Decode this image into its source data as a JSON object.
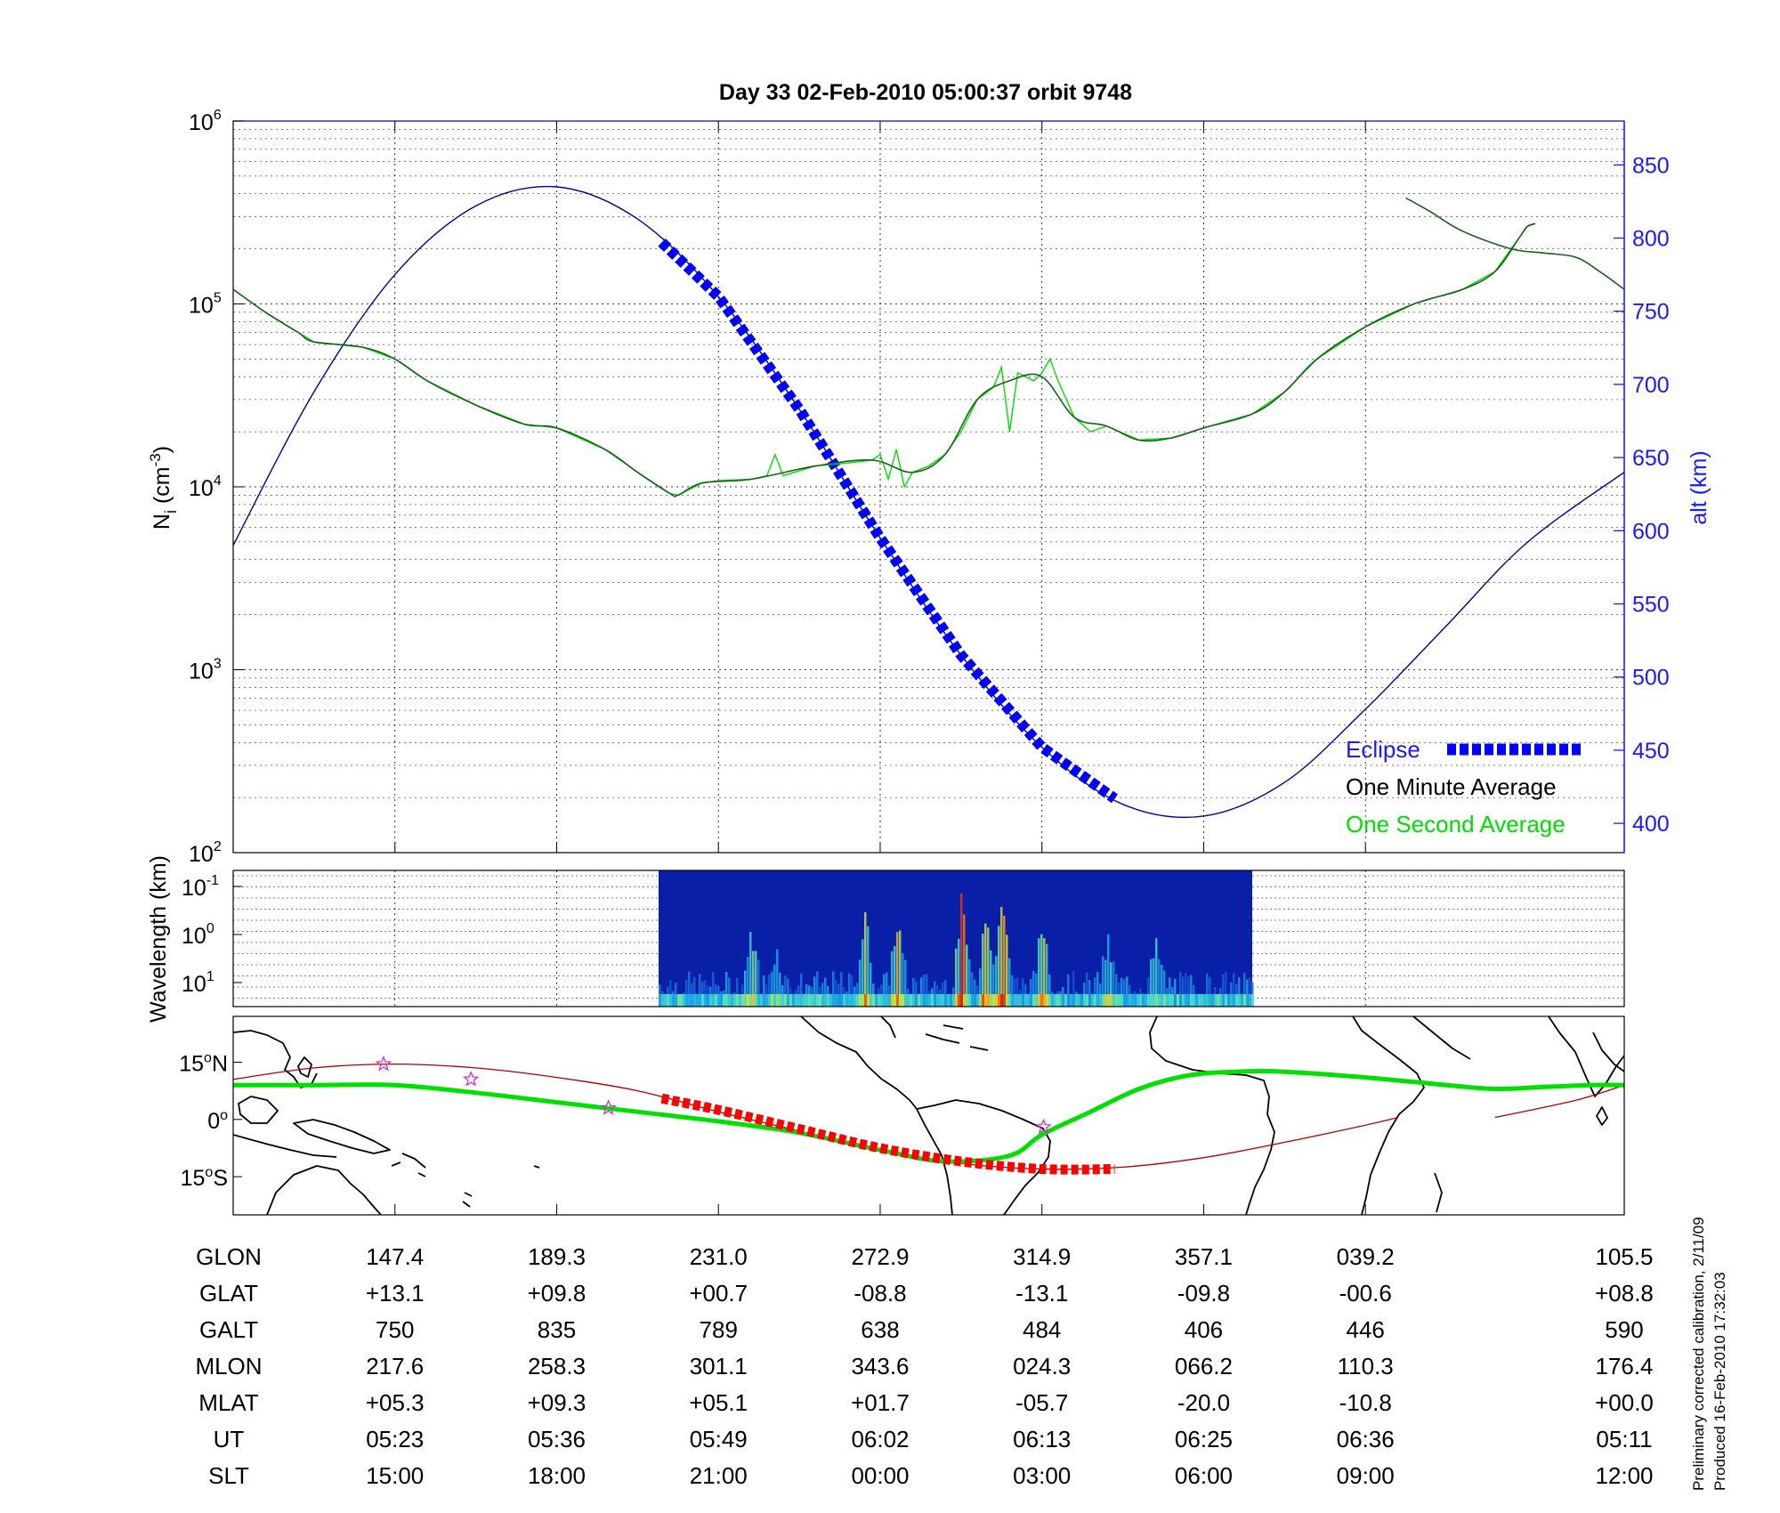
{
  "title": "Day 33  02-Feb-2010 05:00:37   orbit 9748",
  "footer": {
    "line1": "Preliminary corrected calibration, 2/11/09",
    "line2": "Produced 16-Feb-2010 17:32:03"
  },
  "colors": {
    "altitude": "#0000a0",
    "axis_right": "#1a1aff",
    "eclipse": "#0000ff",
    "one_minute": "#1a5e1a",
    "one_second": "#00dd00",
    "track": "#b00000",
    "track_eclipse": "#ff0000",
    "magnetic_equator": "#00e000",
    "star": "#cc33cc",
    "coast": "#000000"
  },
  "chart_data": [
    {
      "type": "line",
      "ylabel_main": "N",
      "ylabel_sub": "i",
      "ylabel_unit_pre": " (cm",
      "ylabel_unit_exp": "-3",
      "ylabel_unit_post": ")",
      "y2label": "alt (km)",
      "y_scale": "log",
      "ylim": [
        100,
        1000000
      ],
      "y_ticks": [
        {
          "base": "10",
          "exp": "2",
          "value": 100
        },
        {
          "base": "10",
          "exp": "3",
          "value": 1000
        },
        {
          "base": "10",
          "exp": "4",
          "value": 10000
        },
        {
          "base": "10",
          "exp": "5",
          "value": 100000
        },
        {
          "base": "10",
          "exp": "6",
          "value": 1000000
        }
      ],
      "y2lim": [
        380,
        880
      ],
      "y2_ticks": [
        "400",
        "450",
        "500",
        "550",
        "600",
        "650",
        "700",
        "750",
        "800",
        "850"
      ],
      "x_range": [
        0,
        8.6
      ],
      "grid": true,
      "legend_position": "bottom-right",
      "legend": [
        {
          "label": "Eclipse",
          "style": "eclipse"
        },
        {
          "label": "One Minute Average",
          "style": "one_minute"
        },
        {
          "label": "One Second Average",
          "style": "one_second"
        }
      ],
      "altitude_km": [
        [
          0.0,
          590
        ],
        [
          0.5,
          695
        ],
        [
          1.0,
          775
        ],
        [
          1.5,
          822
        ],
        [
          2.0,
          835
        ],
        [
          2.5,
          813
        ],
        [
          3.0,
          760
        ],
        [
          3.5,
          683
        ],
        [
          4.0,
          595
        ],
        [
          4.5,
          515
        ],
        [
          5.0,
          452
        ],
        [
          5.5,
          413
        ],
        [
          6.0,
          405
        ],
        [
          6.5,
          428
        ],
        [
          7.0,
          478
        ],
        [
          7.5,
          535
        ],
        [
          8.0,
          592
        ],
        [
          8.6,
          640
        ]
      ],
      "eclipse_interval": [
        2.65,
        5.45
      ],
      "one_second_density": [
        [
          0.0,
          120000
        ],
        [
          0.2,
          90000
        ],
        [
          0.4,
          70000
        ],
        [
          0.5,
          62000
        ],
        [
          0.8,
          58000
        ],
        [
          1.0,
          50000
        ],
        [
          1.2,
          38000
        ],
        [
          1.5,
          28000
        ],
        [
          1.8,
          22000
        ],
        [
          2.0,
          21000
        ],
        [
          2.3,
          16000
        ],
        [
          2.5,
          12000
        ],
        [
          2.7,
          9200
        ],
        [
          2.75,
          9000
        ],
        [
          2.9,
          10500
        ],
        [
          3.0,
          10800
        ],
        [
          3.2,
          11000
        ],
        [
          3.3,
          11500
        ],
        [
          3.35,
          15000
        ],
        [
          3.4,
          11500
        ],
        [
          3.6,
          13000
        ],
        [
          3.8,
          13500
        ],
        [
          3.95,
          14000
        ],
        [
          4.0,
          15000
        ],
        [
          4.05,
          11000
        ],
        [
          4.1,
          16000
        ],
        [
          4.15,
          10000
        ],
        [
          4.2,
          12000
        ],
        [
          4.3,
          13000
        ],
        [
          4.4,
          15000
        ],
        [
          4.5,
          20000
        ],
        [
          4.6,
          30000
        ],
        [
          4.7,
          35000
        ],
        [
          4.75,
          45000
        ],
        [
          4.8,
          20000
        ],
        [
          4.85,
          42000
        ],
        [
          4.95,
          38000
        ],
        [
          5.0,
          42000
        ],
        [
          5.05,
          50000
        ],
        [
          5.1,
          38000
        ],
        [
          5.2,
          24000
        ],
        [
          5.3,
          20000
        ],
        [
          5.4,
          21500
        ],
        [
          5.6,
          18000
        ],
        [
          5.8,
          18500
        ],
        [
          6.0,
          21000
        ],
        [
          6.3,
          25000
        ],
        [
          6.5,
          33000
        ],
        [
          6.7,
          50000
        ],
        [
          7.0,
          75000
        ],
        [
          7.3,
          100000
        ],
        [
          7.6,
          120000
        ],
        [
          7.8,
          150000
        ],
        [
          7.95,
          230000
        ],
        [
          8.0,
          265000
        ],
        [
          8.05,
          275000
        ]
      ],
      "one_minute_density": [
        [
          0.0,
          120000
        ],
        [
          0.2,
          90000
        ],
        [
          0.4,
          70000
        ],
        [
          0.5,
          62000
        ],
        [
          0.8,
          58000
        ],
        [
          1.0,
          50000
        ],
        [
          1.2,
          38000
        ],
        [
          1.5,
          28000
        ],
        [
          1.8,
          22000
        ],
        [
          2.0,
          21000
        ],
        [
          2.3,
          16000
        ],
        [
          2.5,
          12000
        ],
        [
          2.7,
          9200
        ],
        [
          2.75,
          9000
        ],
        [
          2.9,
          10500
        ],
        [
          3.2,
          11000
        ],
        [
          3.6,
          13000
        ],
        [
          3.95,
          14000
        ],
        [
          4.2,
          12000
        ],
        [
          4.4,
          15000
        ],
        [
          4.6,
          30000
        ],
        [
          4.8,
          38000
        ],
        [
          5.0,
          40000
        ],
        [
          5.2,
          24000
        ],
        [
          5.4,
          21500
        ],
        [
          5.6,
          18000
        ],
        [
          5.8,
          18500
        ],
        [
          6.0,
          21000
        ],
        [
          6.3,
          25000
        ],
        [
          6.5,
          33000
        ],
        [
          6.7,
          50000
        ],
        [
          7.0,
          75000
        ],
        [
          7.3,
          100000
        ],
        [
          7.6,
          120000
        ],
        [
          7.8,
          150000
        ],
        [
          7.95,
          230000
        ],
        [
          8.0,
          265000
        ],
        [
          8.05,
          275000
        ]
      ],
      "one_minute_density_segment2": [
        [
          7.25,
          380000
        ],
        [
          7.4,
          320000
        ],
        [
          7.6,
          250000
        ],
        [
          7.9,
          200000
        ],
        [
          8.1,
          190000
        ],
        [
          8.3,
          180000
        ],
        [
          8.45,
          150000
        ],
        [
          8.6,
          120000
        ]
      ]
    },
    {
      "type": "heatmap",
      "ylabel": "Wavelength (km)",
      "y_scale": "log",
      "y_ticks": [
        {
          "base": "10",
          "exp": "-1"
        },
        {
          "base": "10",
          "exp": "0"
        },
        {
          "base": "10",
          "exp": "1"
        }
      ],
      "data_interval": [
        2.63,
        6.3
      ],
      "bright_bands": [
        {
          "x": 3.2,
          "strength": 0.55
        },
        {
          "x": 3.35,
          "strength": 0.4
        },
        {
          "x": 3.9,
          "strength": 0.75
        },
        {
          "x": 4.1,
          "strength": 0.7
        },
        {
          "x": 4.5,
          "strength": 0.95
        },
        {
          "x": 4.65,
          "strength": 0.9
        },
        {
          "x": 4.75,
          "strength": 1.0
        },
        {
          "x": 5.0,
          "strength": 0.7
        },
        {
          "x": 5.4,
          "strength": 0.45
        },
        {
          "x": 5.7,
          "strength": 0.4
        }
      ]
    },
    {
      "type": "map",
      "y_ticks": [
        {
          "deg": "15",
          "hemi": "N",
          "value": 15
        },
        {
          "deg": "0",
          "hemi": "",
          "value": 0
        },
        {
          "deg": "15",
          "hemi": "S",
          "value": -15
        }
      ],
      "lat_range": [
        -25,
        27
      ],
      "stars": [
        [
          0.93,
          14.5
        ],
        [
          1.47,
          10.5
        ],
        [
          2.32,
          3.0
        ],
        [
          5.01,
          -2.0
        ]
      ],
      "orbit_track": [
        [
          0.0,
          10.5
        ],
        [
          0.5,
          13.5
        ],
        [
          1.0,
          14.5
        ],
        [
          1.5,
          13.5
        ],
        [
          2.0,
          11.0
        ],
        [
          2.5,
          7.5
        ],
        [
          3.0,
          2.0
        ],
        [
          3.5,
          -3.0
        ],
        [
          4.0,
          -8.0
        ],
        [
          4.5,
          -11.5
        ],
        [
          5.0,
          -13.0
        ],
        [
          5.5,
          -12.5
        ],
        [
          6.0,
          -10.0
        ],
        [
          6.5,
          -6.0
        ],
        [
          7.0,
          -1.5
        ],
        [
          7.2,
          0.5
        ]
      ],
      "orbit_track_segment2": [
        [
          7.8,
          0.5
        ],
        [
          8.3,
          5.0
        ],
        [
          8.6,
          9.0
        ]
      ],
      "eclipse_track": [
        [
          2.65,
          5.5
        ],
        [
          3.0,
          2.5
        ],
        [
          3.5,
          -2.5
        ],
        [
          4.0,
          -7.5
        ],
        [
          4.5,
          -11.0
        ],
        [
          5.0,
          -13.0
        ],
        [
          5.45,
          -13.0
        ]
      ],
      "magnetic_equator": [
        [
          0.0,
          9.0
        ],
        [
          0.5,
          9.0
        ],
        [
          1.0,
          9.0
        ],
        [
          1.5,
          7.0
        ],
        [
          2.0,
          4.5
        ],
        [
          2.5,
          2.0
        ],
        [
          3.0,
          -0.5
        ],
        [
          3.5,
          -3.5
        ],
        [
          4.0,
          -8.0
        ],
        [
          4.4,
          -11.0
        ],
        [
          4.8,
          -9.5
        ],
        [
          5.0,
          -4.0
        ],
        [
          5.3,
          2.0
        ],
        [
          5.6,
          8.0
        ],
        [
          5.9,
          11.5
        ],
        [
          6.2,
          12.5
        ],
        [
          6.5,
          12.5
        ],
        [
          7.0,
          11.0
        ],
        [
          7.5,
          9.0
        ],
        [
          7.8,
          8.0
        ],
        [
          8.1,
          8.5
        ],
        [
          8.4,
          9.0
        ],
        [
          8.6,
          9.0
        ]
      ]
    },
    {
      "type": "table",
      "rows": [
        {
          "label": "GLON",
          "values": [
            "147.4",
            "189.3",
            "231.0",
            "272.9",
            "314.9",
            "357.1",
            "039.2",
            "105.5"
          ]
        },
        {
          "label": "GLAT",
          "values": [
            "+13.1",
            "+09.8",
            "+00.7",
            "-08.8",
            "-13.1",
            "-09.8",
            "-00.6",
            "+08.8"
          ]
        },
        {
          "label": "GALT",
          "values": [
            "750",
            "835",
            "789",
            "638",
            "484",
            "406",
            "446",
            "590"
          ]
        },
        {
          "label": "MLON",
          "values": [
            "217.6",
            "258.3",
            "301.1",
            "343.6",
            "024.3",
            "066.2",
            "110.3",
            "176.4"
          ]
        },
        {
          "label": "MLAT",
          "values": [
            "+05.3",
            "+09.3",
            "+05.1",
            "+01.7",
            "-05.7",
            "-20.0",
            "-10.8",
            "+00.0"
          ]
        },
        {
          "label": "UT",
          "values": [
            "05:23",
            "05:36",
            "05:49",
            "06:02",
            "06:13",
            "06:25",
            "06:36",
            "05:11"
          ]
        },
        {
          "label": "SLT",
          "values": [
            "15:00",
            "18:00",
            "21:00",
            "00:00",
            "03:00",
            "06:00",
            "09:00",
            "12:00"
          ]
        }
      ],
      "column_positions": [
        1,
        2,
        3,
        4,
        5,
        6,
        7,
        8.6
      ]
    }
  ]
}
